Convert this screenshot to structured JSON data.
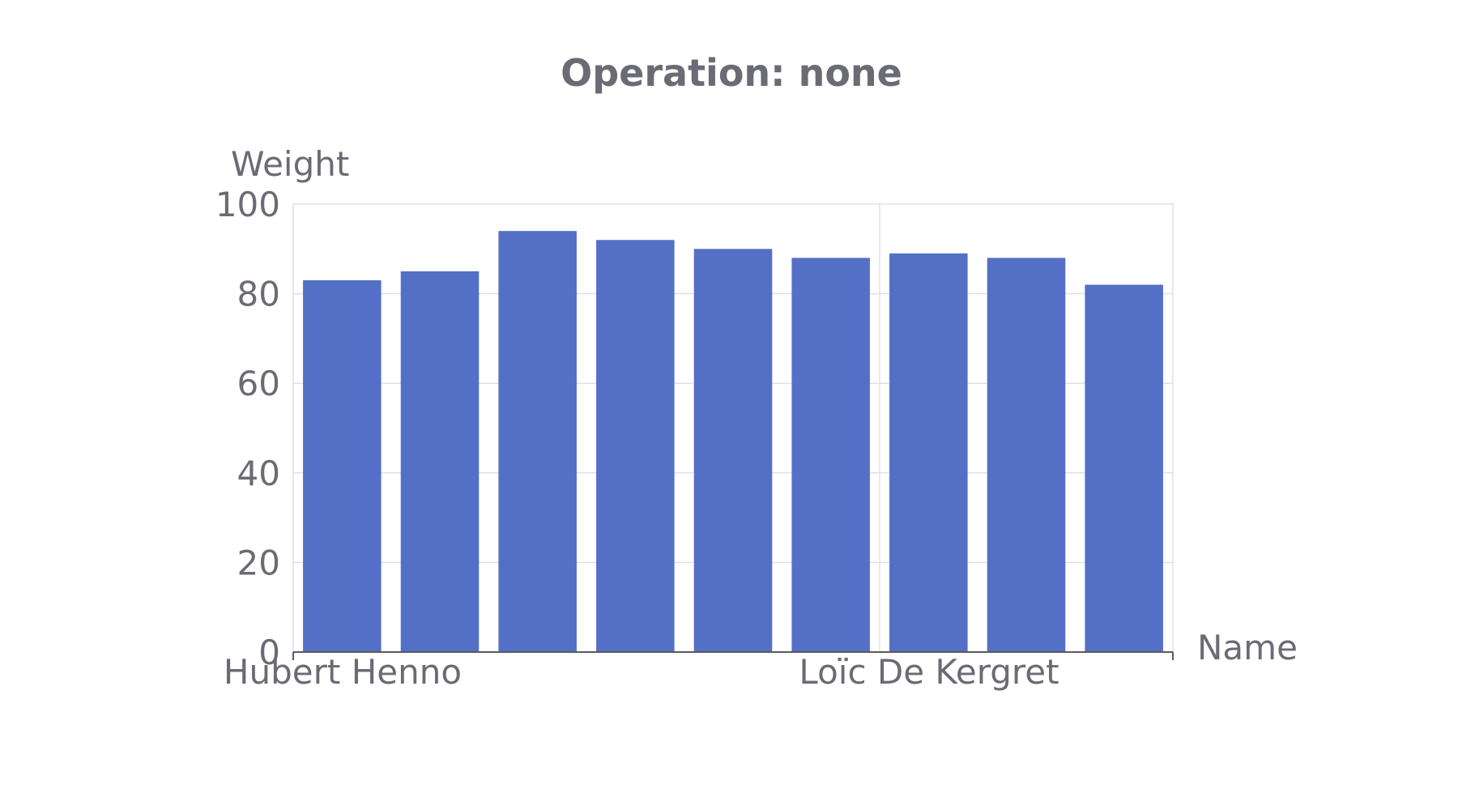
{
  "chart_data": {
    "type": "bar",
    "title": "Operation: none",
    "xlabel": "Name",
    "ylabel": "Weight",
    "ylim": [
      0,
      100
    ],
    "yticks": [
      0,
      20,
      40,
      60,
      80,
      100
    ],
    "categories": [
      "Hubert Henno",
      "",
      "",
      "",
      "",
      "",
      "Loïc De Kergret",
      "",
      ""
    ],
    "values": [
      83,
      85,
      94,
      92,
      90,
      88,
      89,
      88,
      82
    ],
    "grid": true,
    "legend": "none",
    "colors": {
      "bar": "#5470c6",
      "text": "#6b6b75",
      "grid": "#dde1ec"
    }
  }
}
